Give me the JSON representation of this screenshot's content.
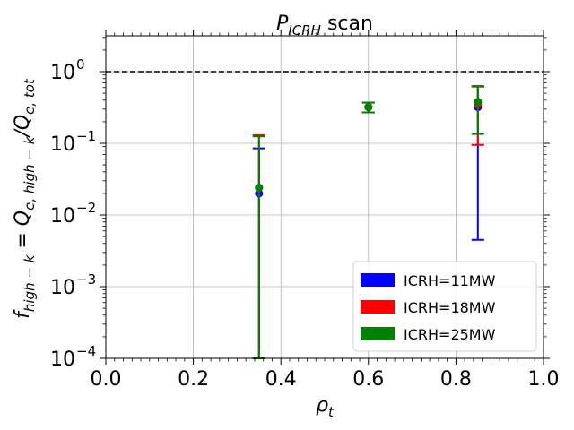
{
  "chart_data": {
    "type": "scatter",
    "title_main": "P",
    "title_sub": "ICRH",
    "title_rest": " scan",
    "xlabel_main": "ρ",
    "xlabel_sub": "t",
    "ylabel": "f_{high−k} = Q_{e,high−k}/Q_{e,tot}",
    "ylabel_parts": [
      {
        "t": "f",
        "sub": false
      },
      {
        "t": "high − k",
        "sub": true
      },
      {
        "t": " = Q",
        "sub": false
      },
      {
        "t": "e, high − k",
        "sub": true
      },
      {
        "t": "/Q",
        "sub": false
      },
      {
        "t": "e, tot",
        "sub": true
      }
    ],
    "xlim": [
      0.0,
      1.0
    ],
    "ylim_log10": [
      -4,
      0.5
    ],
    "yscale": "log",
    "grid": true,
    "x_ticks": [
      0.0,
      0.2,
      0.4,
      0.6,
      0.8,
      1.0
    ],
    "x_tick_labels": [
      "0.0",
      "0.2",
      "0.4",
      "0.6",
      "0.8",
      "1.0"
    ],
    "y_ticks": [
      -4,
      -3,
      -2,
      -1,
      0
    ],
    "reference_line": {
      "y": 1.0,
      "style": "dashed"
    },
    "legend_position": "lower-right",
    "series": [
      {
        "name": "ICRH=11MW",
        "color": "#0000ff",
        "points": [
          {
            "x": 0.35,
            "y": 0.02,
            "ylow": 0.0001,
            "yhigh": 0.085
          },
          {
            "x": 0.6,
            "y": 0.32,
            "ylow": 0.27,
            "yhigh": 0.37
          },
          {
            "x": 0.85,
            "y": 0.32,
            "ylow": 0.0045,
            "yhigh": 0.62
          }
        ]
      },
      {
        "name": "ICRH=18MW",
        "color": "#ff0000",
        "points": [
          {
            "x": 0.35,
            "y": 0.024,
            "ylow": 0.0001,
            "yhigh": 0.13
          },
          {
            "x": 0.6,
            "y": 0.32,
            "ylow": 0.27,
            "yhigh": 0.37
          },
          {
            "x": 0.85,
            "y": 0.35,
            "ylow": 0.095,
            "yhigh": 0.62
          }
        ]
      },
      {
        "name": "ICRH=25MW",
        "color": "#008000",
        "points": [
          {
            "x": 0.35,
            "y": 0.024,
            "ylow": 0.0001,
            "yhigh": 0.125
          },
          {
            "x": 0.6,
            "y": 0.32,
            "ylow": 0.27,
            "yhigh": 0.37
          },
          {
            "x": 0.85,
            "y": 0.38,
            "ylow": 0.135,
            "yhigh": 0.63
          }
        ]
      }
    ]
  }
}
